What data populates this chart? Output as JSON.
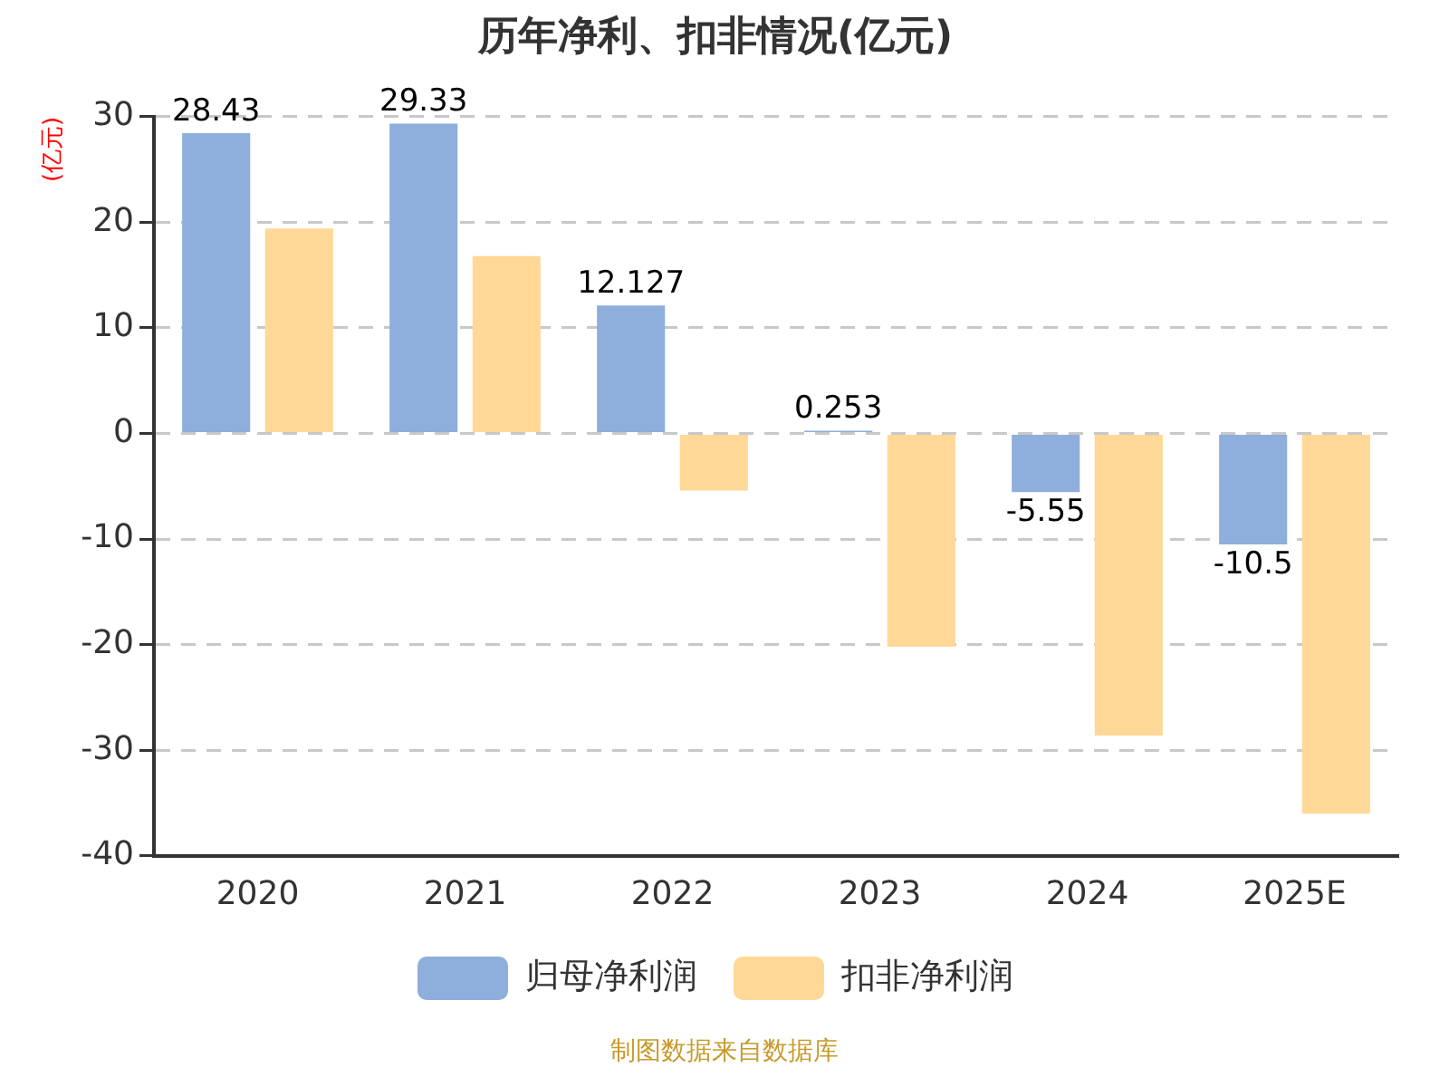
{
  "chart_data": {
    "type": "bar",
    "title": "历年净利、扣非情况(亿元)",
    "ylabel": "(亿元)",
    "categories": [
      "2020",
      "2021",
      "2022",
      "2023",
      "2024",
      "2025E"
    ],
    "series": [
      {
        "name": "归母净利润",
        "color": "#8eaedb",
        "values": [
          28.43,
          29.33,
          12.127,
          0.253,
          -5.55,
          -10.5
        ],
        "value_labels": [
          "28.43",
          "29.33",
          "12.127",
          "0.253",
          "-5.55",
          "-10.5"
        ]
      },
      {
        "name": "扣非净利润",
        "color": "#ffd897",
        "values": [
          19.4,
          16.8,
          -5.4,
          -20.2,
          -28.6,
          -36.0
        ]
      }
    ],
    "ylim": [
      -40,
      30
    ],
    "yticks": [
      -40,
      -30,
      -20,
      -10,
      0,
      10,
      20,
      30
    ],
    "grid": "y",
    "legend": "bottom",
    "annotations": [
      "制图数据来自数据库"
    ]
  }
}
